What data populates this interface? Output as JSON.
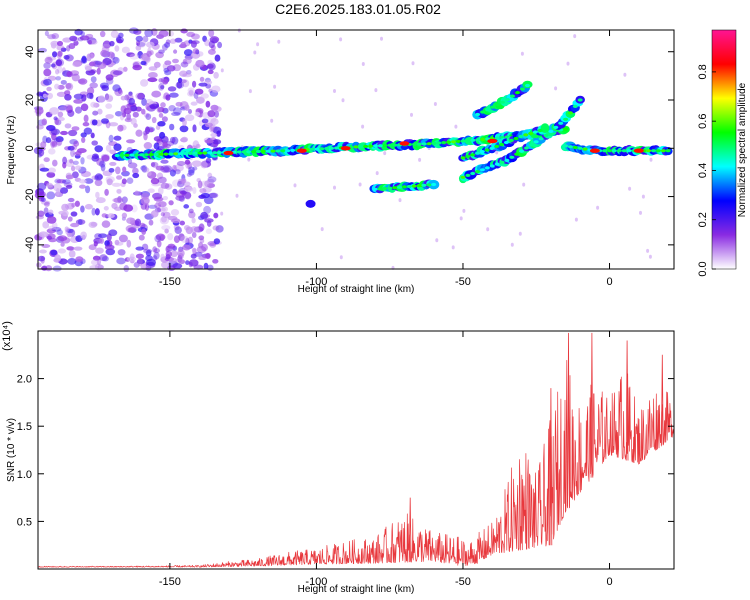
{
  "title": "C2E6.2025.183.01.05.R02",
  "chart_data": [
    {
      "type": "heatmap",
      "xlabel": "Height of straight line (km)",
      "ylabel": "Frequency (Hz)",
      "xlim": [
        -195,
        22
      ],
      "ylim": [
        -50,
        49
      ],
      "xticks": [
        -150,
        -100,
        -50,
        0
      ],
      "yticks": [
        -40,
        -20,
        0,
        20,
        40
      ],
      "colorbar": {
        "label": "Normalized spectral amplitude",
        "range": [
          0,
          0.97
        ],
        "ticks": [
          0.0,
          0.2,
          0.4,
          0.6,
          0.8
        ],
        "colors": [
          "#ffffff",
          "#8a2be2",
          "#0000ff",
          "#00ffff",
          "#00ff00",
          "#ffff00",
          "#ff0000",
          "#ff1493"
        ]
      },
      "ridges": [
        {
          "x": [
            -168,
            -140,
            -110,
            -80,
            -60,
            -40,
            -25,
            -15
          ],
          "y": [
            -3,
            -2,
            -1,
            1,
            2,
            4,
            6,
            8
          ]
        },
        {
          "x": [
            -50,
            -35,
            -22,
            -15,
            -10
          ],
          "y": [
            -12,
            -5,
            5,
            12,
            20
          ]
        },
        {
          "x": [
            -50,
            -40,
            -30,
            -22
          ],
          "y": [
            -4,
            0,
            5,
            8
          ]
        },
        {
          "x": [
            -15,
            -5,
            5,
            20
          ],
          "y": [
            1,
            -1,
            -1,
            -1
          ]
        },
        {
          "x": [
            -80,
            -70,
            -60
          ],
          "y": [
            -17,
            -16,
            -15
          ]
        },
        {
          "x": [
            -45,
            -35,
            -28
          ],
          "y": [
            14,
            20,
            26
          ]
        }
      ],
      "hot_spots": [
        {
          "x": -130,
          "y": -2
        },
        {
          "x": -105,
          "y": -1
        },
        {
          "x": -90,
          "y": 0
        },
        {
          "x": -70,
          "y": 2
        },
        {
          "x": -40,
          "y": 3
        },
        {
          "x": -5,
          "y": -1
        },
        {
          "x": 10,
          "y": -1
        }
      ]
    },
    {
      "type": "line",
      "xlabel": "Height of straight line (km)",
      "ylabel": "SNR (10 * v/v)",
      "multiplier": "(x10⁴)",
      "xlim": [
        -195,
        22
      ],
      "ylim": [
        0,
        2.5
      ],
      "xticks": [
        -150,
        -100,
        -50,
        0
      ],
      "yticks": [
        0.5,
        1.0,
        1.5,
        2.0
      ],
      "color": "#e8383d",
      "envelope": {
        "x": [
          -195,
          -170,
          -140,
          -130,
          -120,
          -110,
          -100,
          -90,
          -80,
          -70,
          -60,
          -52,
          -48,
          -40,
          -35,
          -30,
          -25,
          -20,
          -15,
          -10,
          -5,
          0,
          5,
          10,
          15,
          22
        ],
        "y": [
          0.03,
          0.03,
          0.04,
          0.08,
          0.11,
          0.18,
          0.22,
          0.3,
          0.35,
          0.6,
          0.4,
          0.35,
          0.3,
          0.5,
          0.9,
          1.5,
          1.0,
          1.6,
          2.3,
          1.8,
          2.0,
          1.8,
          2.2,
          1.7,
          2.0,
          1.8
        ]
      },
      "baseline": {
        "x": [
          -195,
          -140,
          -120,
          -100,
          -80,
          -60,
          -50,
          -45,
          -40,
          -30,
          -20,
          -15,
          -5,
          0,
          10,
          22
        ],
        "y": [
          0.02,
          0.02,
          0.03,
          0.05,
          0.06,
          0.08,
          0.03,
          0.06,
          0.15,
          0.2,
          0.25,
          0.6,
          1.0,
          1.2,
          1.1,
          1.4
        ]
      },
      "spikes": [
        {
          "x": -68,
          "y": 0.75
        },
        {
          "x": -14,
          "y": 2.48
        },
        {
          "x": -6,
          "y": 2.48
        },
        {
          "x": 6,
          "y": 2.4
        },
        {
          "x": 18,
          "y": 2.25
        },
        {
          "x": -20,
          "y": 1.9
        }
      ]
    }
  ]
}
